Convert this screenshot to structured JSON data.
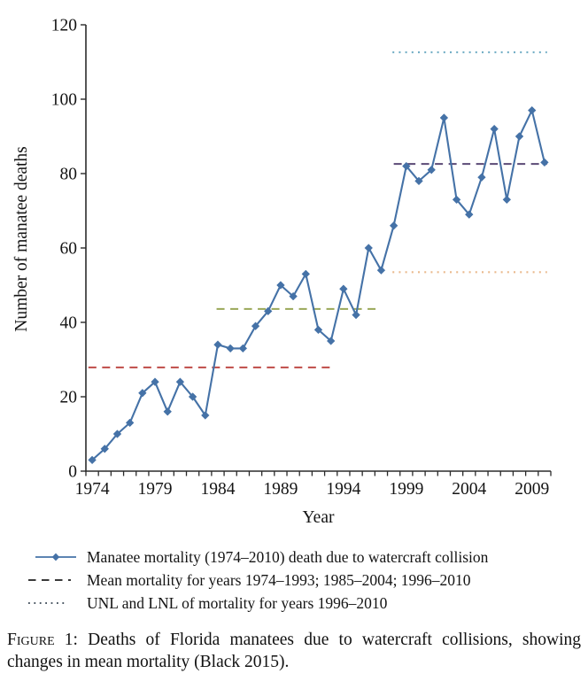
{
  "chart_data": {
    "type": "line",
    "title": "",
    "xlabel": "Year",
    "ylabel": "Number of manatee deaths",
    "x_range": [
      1973.5,
      2010.5
    ],
    "ylim": [
      0,
      120
    ],
    "y_ticks": [
      0,
      20,
      40,
      60,
      80,
      100,
      120
    ],
    "x_tick_labels": [
      1974,
      1979,
      1984,
      1989,
      1994,
      1999,
      2004,
      2009
    ],
    "x_minor_ticks_every": 1,
    "grid": false,
    "legend_position": "bottom",
    "series": [
      {
        "name": "Manatee mortality (1974–2010) death due to watercraft collision",
        "marker": "diamond",
        "color": "#4572a7",
        "x": [
          1974,
          1975,
          1976,
          1977,
          1978,
          1979,
          1980,
          1981,
          1982,
          1983,
          1984,
          1985,
          1986,
          1987,
          1988,
          1989,
          1990,
          1991,
          1992,
          1993,
          1994,
          1995,
          1996,
          1997,
          1998,
          1999,
          2000,
          2001,
          2002,
          2003,
          2004,
          2005,
          2006,
          2007,
          2008,
          2009,
          2010
        ],
        "values": [
          3,
          6,
          10,
          13,
          21,
          24,
          16,
          24,
          20,
          15,
          34,
          33,
          33,
          39,
          43,
          50,
          47,
          53,
          38,
          35,
          49,
          42,
          60,
          54,
          66,
          82,
          78,
          81,
          95,
          73,
          69,
          79,
          92,
          73,
          90,
          97,
          83
        ]
      }
    ],
    "reference_lines": [
      {
        "name": "mean-mortality-1974-1993",
        "value": 27.9,
        "x_start": 1973.7,
        "x_end": 1993.3,
        "style": "dashed",
        "color": "#bf4b47"
      },
      {
        "name": "mean-mortality-1985-2004",
        "value": 43.6,
        "x_start": 1983.9,
        "x_end": 1996.9,
        "style": "dashed",
        "color": "#9aa758"
      },
      {
        "name": "mean-mortality-1996-2010",
        "value": 82.6,
        "x_start": 1998.0,
        "x_end": 2010.2,
        "style": "dashed",
        "color": "#5b4a76"
      },
      {
        "name": "unl-mortality-1996-2010",
        "value": 112.6,
        "x_start": 1997.9,
        "x_end": 2010.2,
        "style": "dotted",
        "color": "#73aec5"
      },
      {
        "name": "lnl-mortality-1996-2010",
        "value": 53.5,
        "x_start": 1997.9,
        "x_end": 2010.2,
        "style": "dotted",
        "color": "#eab98c"
      }
    ]
  },
  "legend": {
    "items": [
      {
        "label": "Manatee mortality (1974–2010) death due to watercraft collision",
        "swatch": "line-diamond",
        "color": "#4572a7"
      },
      {
        "label": "Mean mortality for years 1974–1993; 1985–2004; 1996–2010",
        "swatch": "dashed",
        "color": "#3a3a3a"
      },
      {
        "label": "UNL and LNL of mortality for years 1996–2010",
        "swatch": "dotted",
        "color": "#4e5a66"
      }
    ]
  },
  "caption": {
    "label": "Figure 1:",
    "text": " Deaths of Florida manatees due to watercraft collisions, showing changes in mean mortality (Black 2015)."
  },
  "colors": {
    "axis": "#2b2b2b",
    "text": "#141414"
  }
}
